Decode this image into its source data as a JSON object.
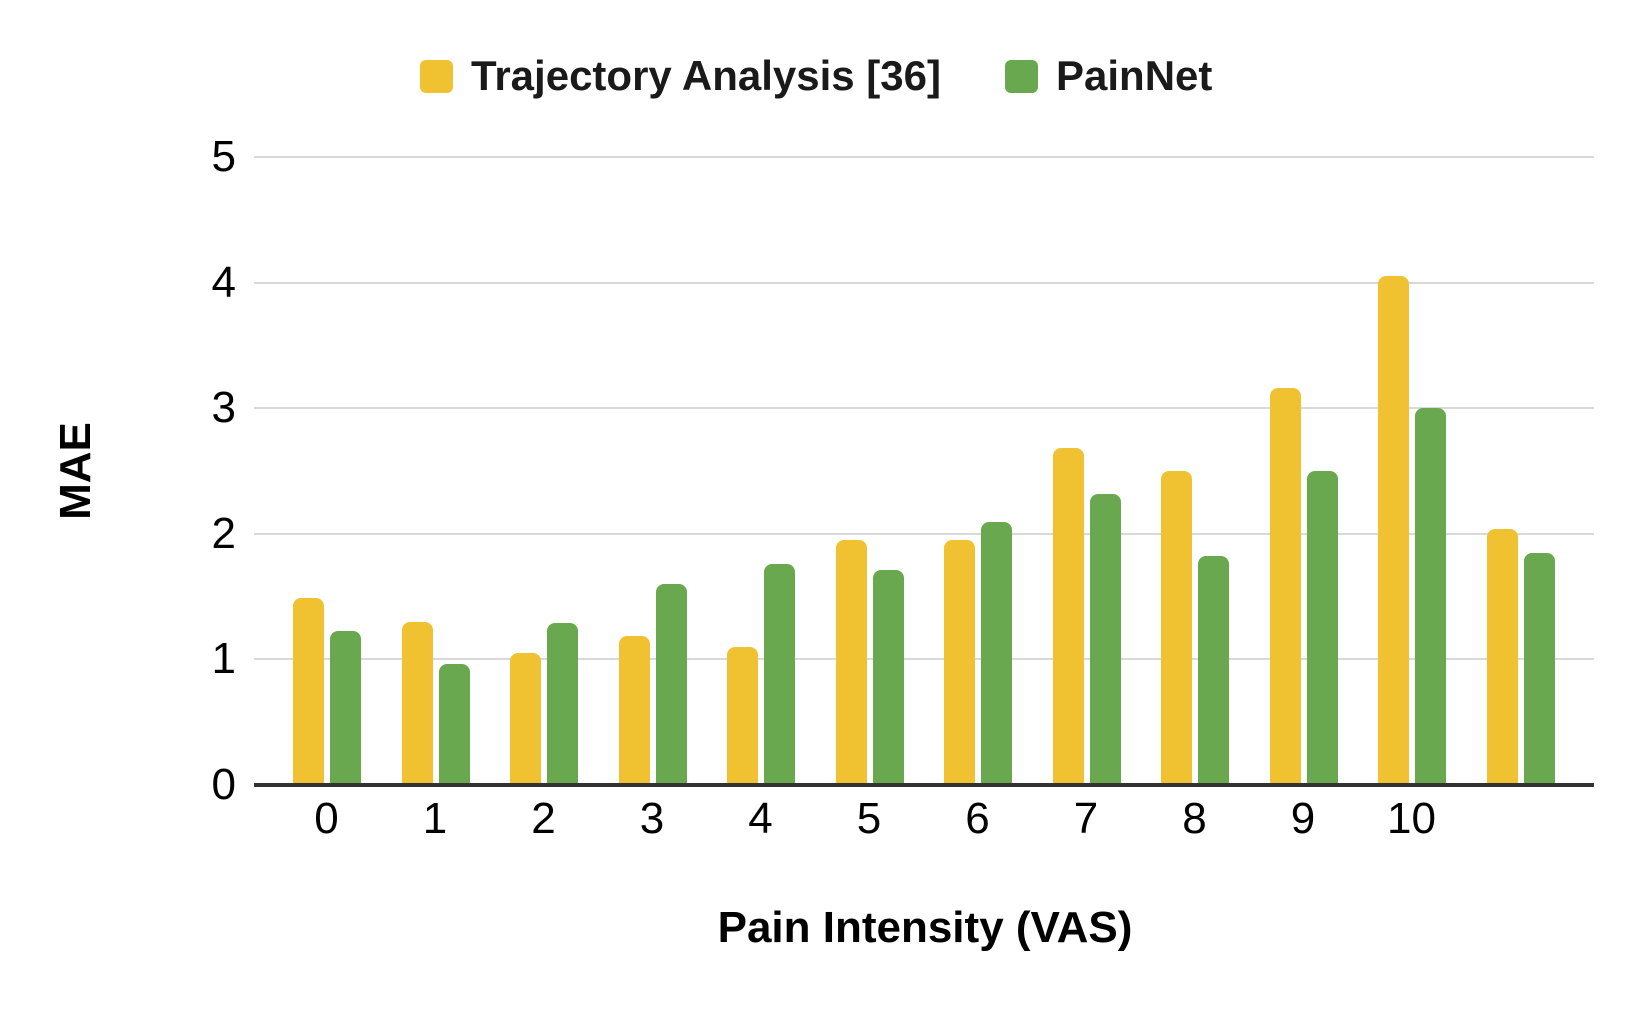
{
  "chart_data": {
    "type": "bar",
    "title": "",
    "xlabel": "Pain Intensity (VAS)",
    "ylabel": "MAE",
    "categories": [
      "0",
      "1",
      "2",
      "3",
      "4",
      "5",
      "6",
      "7",
      "8",
      "9",
      "10",
      ""
    ],
    "series": [
      {
        "name": "Trajectory Analysis [36]",
        "color": "#F0C232",
        "values": [
          1.49,
          1.3,
          1.05,
          1.19,
          1.1,
          1.95,
          1.95,
          2.68,
          2.5,
          3.16,
          4.05,
          2.04
        ]
      },
      {
        "name": "PainNet",
        "color": "#6AA84F",
        "values": [
          1.23,
          0.96,
          1.29,
          1.6,
          1.76,
          1.71,
          2.09,
          2.32,
          1.82,
          2.5,
          3.0,
          1.85
        ]
      }
    ],
    "ylim": [
      0,
      5
    ],
    "yticks": [
      0,
      1,
      2,
      3,
      4,
      5
    ],
    "grid": true,
    "legend_position": "top"
  },
  "colors": {
    "gridline": "#D9D9D9",
    "axis": "#333333",
    "tick_text": "#000000",
    "title_text": "#1A1A1A"
  }
}
